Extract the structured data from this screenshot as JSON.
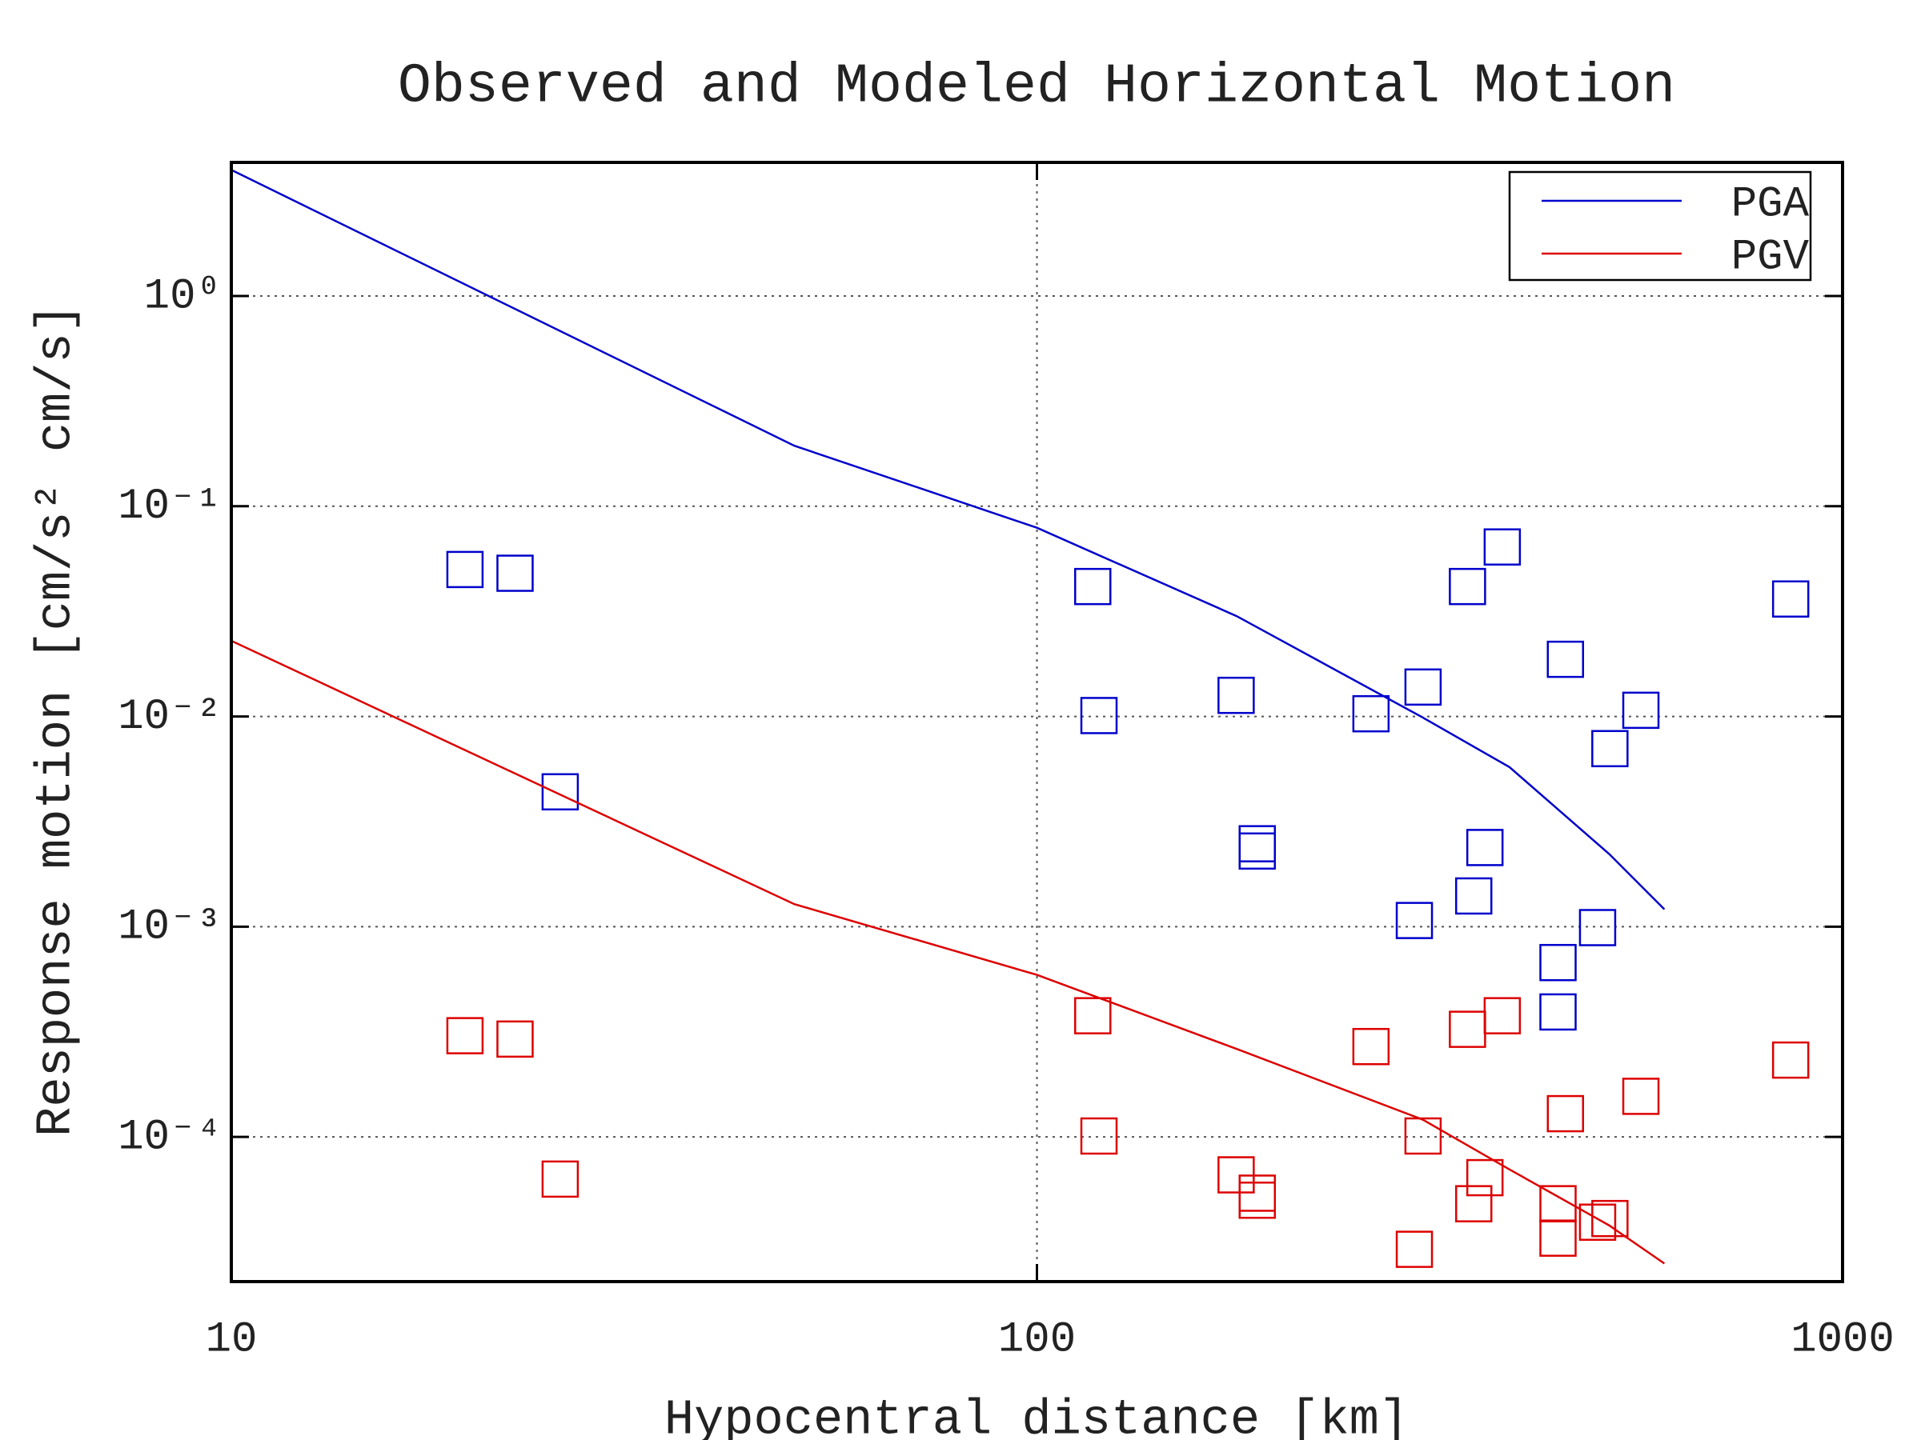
{
  "chart_data": {
    "type": "line_scatter",
    "title": "Observed and Modeled Horizontal Motion",
    "x_label": "Hypocentral distance [km]",
    "y_label": "Response motion [cm/s²  cm/s]",
    "log_x": true,
    "log_y": true,
    "xlim": [
      10,
      1000
    ],
    "xticks": [
      10,
      100,
      1000
    ],
    "ylim": [
      2.05e-05,
      4.32
    ],
    "yticks": [
      {
        "value": 1,
        "label": "10⁰"
      },
      {
        "value": 0.1,
        "label": "10⁻¹"
      },
      {
        "value": 0.01,
        "label": "10⁻²"
      },
      {
        "value": 0.001,
        "label": "10⁻³"
      },
      {
        "value": 0.0001,
        "label": "10⁻⁴"
      }
    ],
    "grid": true,
    "legend": "upper right",
    "series": [
      {
        "name": "PGA",
        "color": "#0000cc",
        "x": [
          10,
          50,
          100,
          177,
          301,
          386,
          513,
          601
        ],
        "values": [
          3.98,
          0.194,
          0.079,
          0.03,
          0.0099,
          0.00574,
          0.00222,
          0.00121
        ],
        "points_x": [
          19.5,
          22.5,
          25.6,
          117.3,
          119.4,
          176.7,
          187.7,
          187.7,
          259.8,
          294.1,
          301.5,
          342.3,
          348.5,
          359.8,
          378.1,
          443.4,
          443.4,
          452.9,
          496.5,
          514.3,
          561.9,
          862.2
        ],
        "points_values": [
          0.05,
          0.048,
          0.00438,
          0.0415,
          0.0101,
          0.0126,
          0.00248,
          0.00229,
          0.0103,
          0.00107,
          0.0138,
          0.0415,
          0.0014,
          0.00238,
          0.064,
          0.000675,
          0.000393,
          0.0187,
          0.00099,
          0.00703,
          0.0107,
          0.0362
        ]
      },
      {
        "name": "PGV",
        "color": "#dd0000",
        "x": [
          10,
          50,
          100,
          177,
          301,
          386,
          513,
          601
        ],
        "values": [
          0.0229,
          0.00128,
          0.00059,
          0.000262,
          0.000121,
          7e-05,
          3.8e-05,
          2.5e-05
        ],
        "points_x": [
          19.5,
          22.5,
          25.6,
          117.3,
          119.4,
          176.7,
          187.7,
          187.7,
          259.8,
          294.1,
          301.5,
          342.3,
          348.5,
          359.8,
          378.1,
          443.4,
          443.4,
          452.9,
          496.5,
          514.3,
          561.9,
          862.2
        ],
        "points_values": [
          0.000303,
          0.000292,
          6.3e-05,
          0.000377,
          0.000101,
          6.6e-05,
          5.4e-05,
          5e-05,
          0.000269,
          2.92e-05,
          0.000101,
          0.000325,
          4.81e-05,
          6.4e-05,
          0.000377,
          4.81e-05,
          3.3e-05,
          0.000129,
          3.93e-05,
          4.09e-05,
          0.000156,
          0.000232
        ]
      }
    ]
  }
}
